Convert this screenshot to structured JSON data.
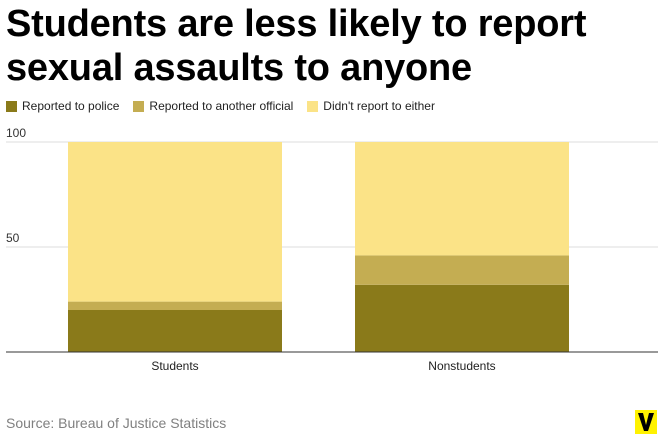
{
  "title": "Students are less likely to report sexual assaults to anyone",
  "source": "Source: Bureau of Justice Statistics",
  "logo_letter": "V",
  "colors": {
    "police": "#8a7a1a",
    "official": "#c4ad52",
    "neither": "#fbe387",
    "grid": "#dddddd",
    "axis": "#333333",
    "logo_bg": "#fff200",
    "logo_fg": "#000000"
  },
  "chart_data": {
    "type": "bar",
    "stacked": true,
    "categories": [
      "Students",
      "Nonstudents"
    ],
    "series": [
      {
        "name": "Reported to police",
        "values": [
          20,
          32
        ]
      },
      {
        "name": "Reported to another official",
        "values": [
          4,
          14
        ]
      },
      {
        "name": "Didn't report to either",
        "values": [
          76,
          54
        ]
      }
    ],
    "yticks": [
      100,
      50
    ],
    "ylim": [
      0,
      100
    ],
    "xlabel": "",
    "ylabel": "",
    "grid": true,
    "legend": "top-left"
  }
}
